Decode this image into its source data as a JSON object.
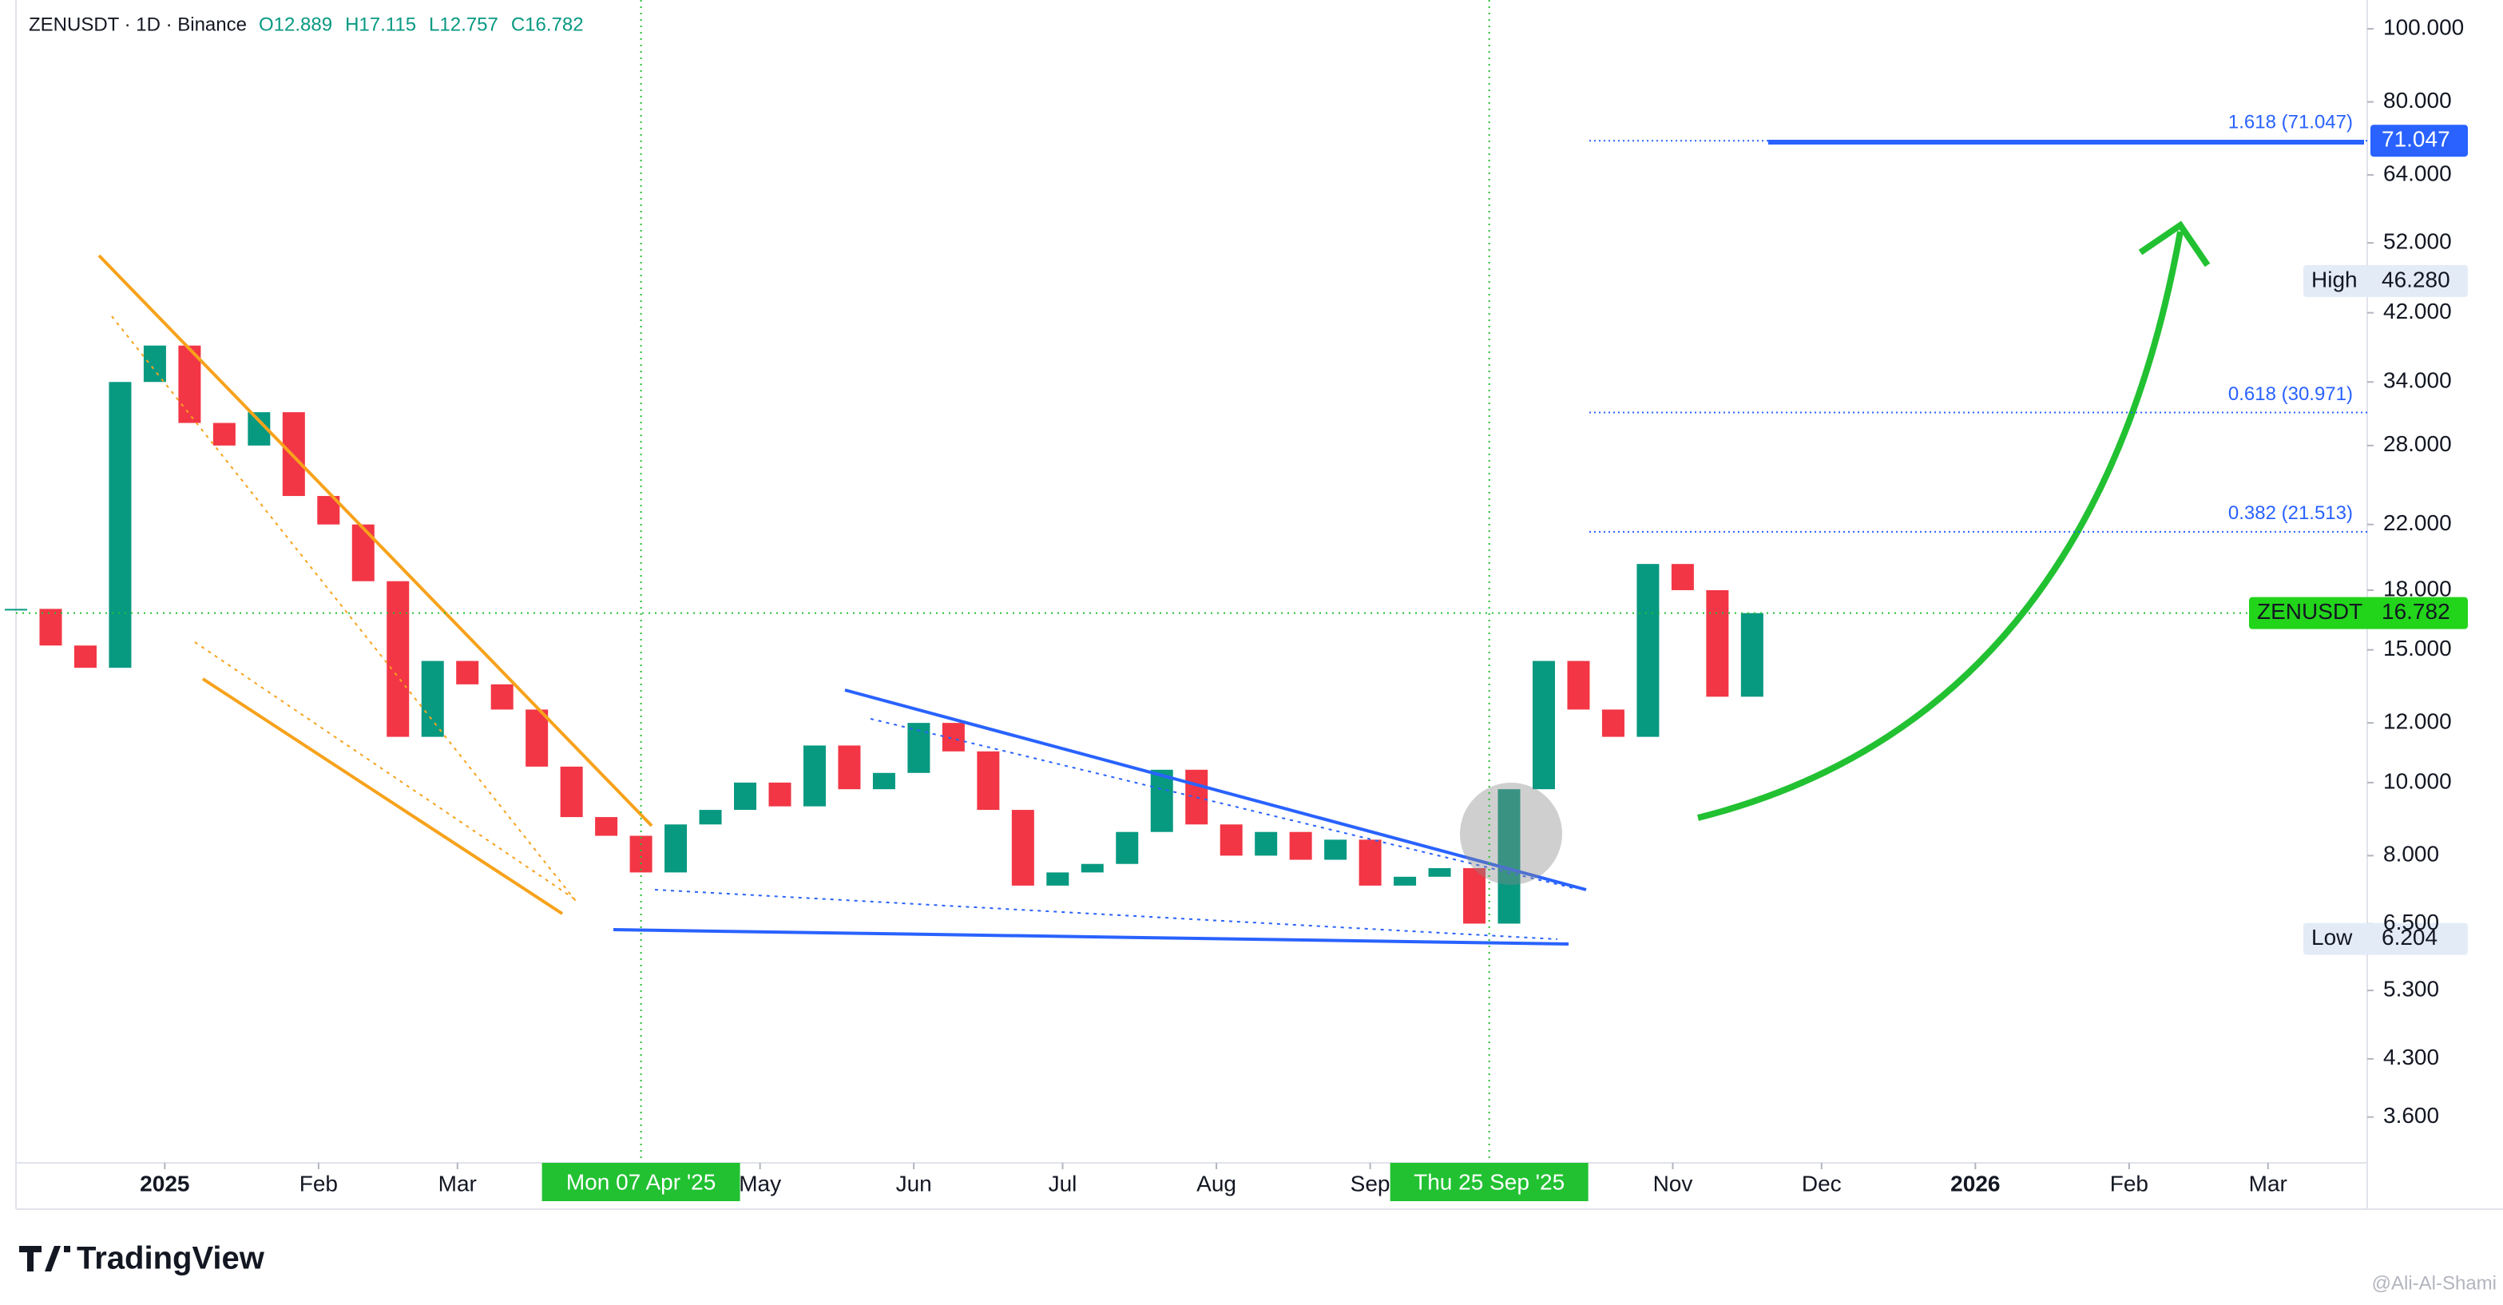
{
  "chart_data": {
    "type": "candlestick",
    "symbol": "ZENUSDT · 1D · Binance",
    "ohlc_legend": [
      "O12.889",
      "H17.115",
      "L12.757",
      "C16.782"
    ],
    "x": [
      "2024-12-02",
      "2024-12-09",
      "2024-12-16",
      "2024-12-23",
      "2024-12-30",
      "2025-01-06",
      "2025-01-13",
      "2025-01-20",
      "2025-01-27",
      "2025-02-03",
      "2025-02-10",
      "2025-02-17",
      "2025-02-24",
      "2025-03-03",
      "2025-03-10",
      "2025-03-17",
      "2025-03-24",
      "2025-03-31",
      "2025-04-07",
      "2025-04-14",
      "2025-04-21",
      "2025-04-28",
      "2025-05-05",
      "2025-05-12",
      "2025-05-19",
      "2025-05-26",
      "2025-06-02",
      "2025-06-09",
      "2025-06-16",
      "2025-06-23",
      "2025-06-30",
      "2025-07-07",
      "2025-07-14",
      "2025-07-21",
      "2025-07-28",
      "2025-08-04",
      "2025-08-11",
      "2025-08-18",
      "2025-08-25",
      "2025-09-01",
      "2025-09-08",
      "2025-09-15",
      "2025-09-22",
      "2025-09-29",
      "2025-10-06",
      "2025-10-13",
      "2025-10-20",
      "2025-10-27",
      "2025-11-03",
      "2025-11-10",
      "2025-11-17"
    ],
    "series": [
      {
        "name": "ZENUSDT",
        "up_color": "#089981",
        "down_color": "#f23645",
        "values": [
          17.0,
          15.2,
          14.2,
          34,
          38,
          30,
          28,
          31,
          24,
          22,
          18.5,
          11.5,
          14.5,
          13.5,
          12.5,
          10.5,
          9.0,
          8.5,
          7.6,
          8.8,
          9.2,
          10.0,
          9.3,
          11.2,
          9.8,
          10.3,
          12.0,
          11.0,
          9.2,
          7.3,
          7.6,
          7.8,
          8.6,
          10.4,
          8.8,
          8.0,
          8.6,
          7.9,
          8.4,
          7.3,
          7.5,
          7.7,
          6.5,
          9.8,
          14.5,
          12.5,
          11.5,
          19.5,
          18.0,
          13.0,
          16.782
        ]
      }
    ],
    "xlim": [
      "2024-12-02",
      "2026-03-21"
    ],
    "xticks": [
      {
        "value": "2025-01",
        "label": "2025"
      },
      {
        "value": "2025-02",
        "label": "Feb"
      },
      {
        "value": "2025-03",
        "label": "Mar"
      },
      {
        "value": "2025-05",
        "label": "May"
      },
      {
        "value": "2025-06",
        "label": "Jun"
      },
      {
        "value": "2025-07",
        "label": "Jul"
      },
      {
        "value": "2025-08",
        "label": "Aug"
      },
      {
        "value": "2025-09",
        "label": "Sep"
      },
      {
        "value": "2025-11",
        "label": "Nov"
      },
      {
        "value": "2025-12",
        "label": "Dec"
      },
      {
        "value": "2026-01",
        "label": "2026"
      },
      {
        "value": "2026-02",
        "label": "Feb"
      },
      {
        "value": "2026-03",
        "label": "Mar"
      }
    ],
    "ylim": [
      3.13,
      109.2
    ],
    "log_scale": true,
    "yticks": [
      {
        "value": 100,
        "label": "100.000"
      },
      {
        "value": 80,
        "label": "80.000"
      },
      {
        "value": 64,
        "label": "64.000"
      },
      {
        "value": 52,
        "label": "52.000"
      },
      {
        "value": 42,
        "label": "42.000"
      },
      {
        "value": 34,
        "label": "34.000"
      },
      {
        "value": 28,
        "label": "28.000"
      },
      {
        "value": 22,
        "label": "22.000"
      },
      {
        "value": 18,
        "label": "18.000"
      },
      {
        "value": 15,
        "label": "15.000"
      },
      {
        "value": 12,
        "label": "12.000"
      },
      {
        "value": 10,
        "label": "10.000"
      },
      {
        "value": 8,
        "label": "8.000"
      },
      {
        "value": 6.5,
        "label": "6.500"
      },
      {
        "value": 5.3,
        "label": "5.300"
      },
      {
        "value": 4.3,
        "label": "4.300"
      },
      {
        "value": 3.6,
        "label": "3.600"
      }
    ],
    "fib_levels": [
      {
        "value": 71.047,
        "label": "1.618 (71.047)"
      },
      {
        "value": 30.971,
        "label": "0.618 (30.971)"
      },
      {
        "value": 21.513,
        "label": "0.382 (21.513)"
      }
    ],
    "price_badges": [
      {
        "value": 71.047,
        "label": "71.047",
        "color": "#2962ff"
      },
      {
        "name": "High",
        "value": 46.28,
        "label": "46.280",
        "color": "#e3ebf7"
      },
      {
        "name": "ZENUSDT",
        "value": 16.782,
        "label": "16.782",
        "color": "#22d41a"
      },
      {
        "name": "Low",
        "value": 6.204,
        "label": "6.204",
        "color": "#e3ebf7"
      }
    ],
    "crosshairs": [
      {
        "value": "2025-04-07",
        "label": "Mon 07 Apr '25"
      },
      {
        "value": "2025-09-25",
        "label": "Thu 25 Sep '25"
      }
    ],
    "brand": "TradingView",
    "watermark": "@Ali-Al-Shami"
  }
}
